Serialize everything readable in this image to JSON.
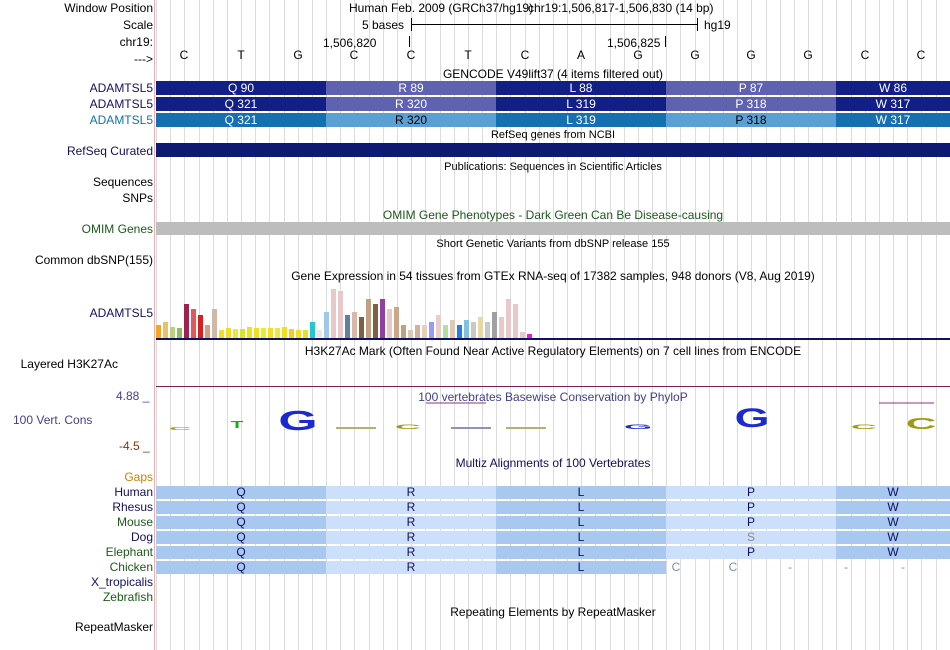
{
  "position": {
    "window_label": "Window Position",
    "scale_label": "Scale",
    "chr_label": "chr19:",
    "strand_label": "--->",
    "assembly": "Human Feb. 2009 (GRCh37/hg19)",
    "coords": "chr19:1,506,817-1,506,830 (14 bp)",
    "scale_text": "5 bases",
    "db": "hg19",
    "tick1": "1,506,820",
    "tick2": "1,506,825"
  },
  "sequence": [
    "C",
    "T",
    "G",
    "C",
    "C",
    "T",
    "C",
    "A",
    "G",
    "G",
    "G",
    "G",
    "C",
    "C"
  ],
  "gencode": {
    "title": "GENCODE V49lift37 (4 items filtered out)",
    "rows": [
      {
        "label": "ADAMTSL5",
        "codons": [
          "Q 90",
          "R 89",
          "L 88",
          "P 87",
          "W 86"
        ],
        "colors": [
          "#121f86",
          "#5e62b0",
          "#121f86",
          "#5e62b0",
          "#121f86"
        ]
      },
      {
        "label": "ADAMTSL5",
        "codons": [
          "Q 321",
          "R 320",
          "L 319",
          "P 318",
          "W 317"
        ],
        "colors": [
          "#121f86",
          "#5e62b0",
          "#121f86",
          "#5e62b0",
          "#121f86"
        ]
      },
      {
        "label": "ADAMTSL5",
        "codons": [
          "Q 321",
          "R 320",
          "L 319",
          "P 318",
          "W 317"
        ],
        "colors": [
          "#1470b0",
          "#5aa0d4",
          "#1470b0",
          "#5aa0d4",
          "#1470b0"
        ]
      }
    ]
  },
  "refseq": {
    "title": "RefSeq genes from NCBI",
    "label": "RefSeq Curated"
  },
  "publications": {
    "title": "Publications: Sequences in Scientific Articles",
    "label1": "Sequences",
    "label2": "SNPs"
  },
  "omim": {
    "title": "OMIM Gene Phenotypes - Dark Green Can Be Disease-causing",
    "label": "OMIM Genes"
  },
  "dbsnp": {
    "title": "Short Genetic Variants from dbSNP release 155",
    "label": "Common dbSNP(155)"
  },
  "gtex": {
    "title": "Gene Expression in 54 tissues from GTEx RNA-seq of 17382 samples, 948 donors (V8, Aug 2019)",
    "label": "ADAMTSL5",
    "values": [
      0.25,
      0.3,
      0.22,
      0.2,
      0.65,
      0.55,
      0.45,
      0.25,
      0.55,
      0.15,
      0.2,
      0.18,
      0.18,
      0.22,
      0.2,
      0.2,
      0.2,
      0.2,
      0.22,
      0.18,
      0.15,
      0.15,
      0.3,
      0.15,
      0.5,
      0.95,
      0.9,
      0.45,
      0.5,
      0.4,
      0.75,
      0.65,
      0.75,
      0.55,
      0.6,
      0.25,
      0.15,
      0.25,
      0.25,
      0.3,
      0.45,
      0.25,
      0.35,
      0.25,
      0.35,
      0.3,
      0.4,
      0.3,
      0.5,
      0.4,
      0.75,
      0.65,
      0.12,
      0.08
    ],
    "colors": [
      "#f5a623",
      "#e8c268",
      "#c0cc80",
      "#8cbe60",
      "#a02050",
      "#e05858",
      "#d82020",
      "#d4a080",
      "#d0b8a8",
      "#f0e020",
      "#f0e020",
      "#e8e840",
      "#d8e820",
      "#f0e020",
      "#f0e020",
      "#e8f020",
      "#f0e020",
      "#e8e840",
      "#f0e020",
      "#f0d020",
      "#f0e020",
      "#e8e020",
      "#20c8d0",
      "#e8e8e8",
      "#a0c8e8",
      "#e8c8c8",
      "#e8c8c8",
      "#6080a0",
      "#d8b8a8",
      "#806040",
      "#c0a080",
      "#806040",
      "#9040a0",
      "#e8c8c8",
      "#c8a888",
      "#c0a080",
      "#d8c8b8",
      "#d0b0a0",
      "#e8d0b8",
      "#9898ff",
      "#e8d0c8",
      "#b0e0a0",
      "#e0c8b8",
      "#2080e0",
      "#80c0e0",
      "#c8c8c8",
      "#e8d8a8",
      "#c8c8c8",
      "#a0a0a0",
      "#e8c8c8",
      "#e8c8c8",
      "#e8c8c8",
      "#e8c8c8",
      "#e020e0"
    ]
  },
  "h3k27ac": {
    "title": "H3K27Ac Mark (Often Found Near Active Regulatory Elements) on 7 cell lines from ENCODE",
    "label": "Layered H3K27Ac"
  },
  "phylop": {
    "title": "100 vertebrates Basewise Conservation by PhyloP",
    "label": "100 Vert. Cons",
    "max": "4.88 _",
    "min": "-4.5 _"
  },
  "multiz": {
    "title": "Multiz Alignments of 100 Vertebrates",
    "gaps_label": "Gaps",
    "species": [
      {
        "name": "Human",
        "color": "#101060",
        "cells": [
          "Q",
          "R",
          "L",
          "P",
          "W"
        ]
      },
      {
        "name": "Rhesus",
        "color": "#101060",
        "cells": [
          "Q",
          "R",
          "L",
          "P",
          "W"
        ]
      },
      {
        "name": "Mouse",
        "color": "#1a5a1a",
        "cells": [
          "Q",
          "R",
          "L",
          "P",
          "W"
        ]
      },
      {
        "name": "Dog",
        "color": "#101060",
        "cells": [
          "Q",
          "R",
          "L",
          "S",
          "W"
        ]
      },
      {
        "name": "Elephant",
        "color": "#1a5a1a",
        "cells": [
          "Q",
          "R",
          "L",
          "P",
          "W"
        ]
      },
      {
        "name": "Chicken",
        "color": "#1a5a1a",
        "cells": [
          "Q",
          "R",
          "L"
        ],
        "tail": [
          "C",
          "C",
          "-",
          "-",
          "-"
        ]
      },
      {
        "name": "X_tropicalis",
        "color": "#101060",
        "cells": []
      },
      {
        "name": "Zebrafish",
        "color": "#1a5a1a",
        "cells": []
      }
    ]
  },
  "repeatmasker": {
    "title": "Repeating Elements by RepeatMasker",
    "label": "RepeatMasker"
  },
  "colors": {
    "track_label": "#101060",
    "omim_green": "#1a5a1a",
    "gencode_dark": "#121f86",
    "gencode_light": "#5e62b0",
    "refseq": "#0c1a74",
    "omim_bar": "#bdbdbd",
    "multiz_dark": "#a8c8f0",
    "multiz_light": "#cde0fb",
    "phylop_blue": "#1a2ad0",
    "phylop_olive": "#a09a10",
    "phylop_green": "#10b020",
    "phylop_label": "#404090",
    "phylop_max": "#404090",
    "phylop_min": "#903010"
  }
}
